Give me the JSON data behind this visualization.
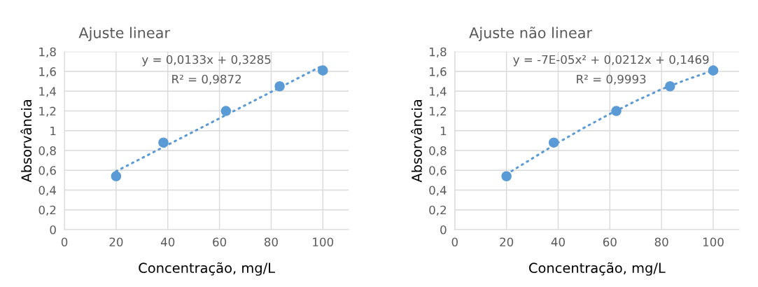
{
  "chart_data": [
    {
      "type": "scatter",
      "title": "Ajuste linear",
      "xlabel": "Concentração, mg/L",
      "ylabel": "Absorvância",
      "xlim": [
        0,
        110
      ],
      "xticks": [
        0,
        20,
        40,
        60,
        80,
        100
      ],
      "ylim": [
        0,
        1.8
      ],
      "yticks": [
        {
          "value": 0,
          "label": "0"
        },
        {
          "value": 0.2,
          "label": "0,2"
        },
        {
          "value": 0.4,
          "label": "0,4"
        },
        {
          "value": 0.6,
          "label": "0,6"
        },
        {
          "value": 0.8,
          "label": "0,8"
        },
        {
          "value": 1,
          "label": "1"
        },
        {
          "value": 1.2,
          "label": "1,2"
        },
        {
          "value": 1.4,
          "label": "1,4"
        },
        {
          "value": 1.6,
          "label": "1,6"
        },
        {
          "value": 1.8,
          "label": "1,8"
        }
      ],
      "grid": true,
      "annotations": [
        "y = 0,0133x + 0,3285",
        "R² = 0,9872"
      ],
      "series": [
        {
          "color": "#5b9bd5",
          "marker": "circle",
          "x": [
            20,
            38.3,
            62.5,
            83.3,
            100
          ],
          "values": [
            0.54,
            0.88,
            1.2,
            1.45,
            1.61
          ]
        },
        {
          "type": "line",
          "color": "#5b9bd5",
          "line_style": "dotted",
          "marker": "none",
          "x": [
            20,
            100
          ],
          "values": [
            0.59,
            1.66
          ]
        }
      ]
    },
    {
      "type": "scatter",
      "title": "Ajuste não linear",
      "xlabel": "Concentração, mg/L",
      "ylabel": "Absorvância",
      "xlim": [
        0,
        110
      ],
      "xticks": [
        0,
        20,
        40,
        60,
        80,
        100
      ],
      "ylim": [
        0,
        1.8
      ],
      "yticks": [
        {
          "value": 0,
          "label": "0"
        },
        {
          "value": 0.2,
          "label": "0,2"
        },
        {
          "value": 0.4,
          "label": "0,4"
        },
        {
          "value": 0.6,
          "label": "0,6"
        },
        {
          "value": 0.8,
          "label": "0,8"
        },
        {
          "value": 1,
          "label": "1"
        },
        {
          "value": 1.2,
          "label": "1,2"
        },
        {
          "value": 1.4,
          "label": "1,4"
        },
        {
          "value": 1.6,
          "label": "1,6"
        },
        {
          "value": 1.8,
          "label": "1,8"
        }
      ],
      "grid": true,
      "annotations": [
        "y = -7E-05x² + 0,0212x + 0,1469",
        "R² = 0,9993"
      ],
      "series": [
        {
          "color": "#5b9bd5",
          "marker": "circle",
          "x": [
            20,
            38.3,
            62.5,
            83.3,
            100
          ],
          "values": [
            0.54,
            0.88,
            1.2,
            1.45,
            1.61
          ]
        },
        {
          "type": "line",
          "color": "#5b9bd5",
          "line_style": "dotted",
          "marker": "none",
          "x": [
            20,
            30,
            40,
            50,
            60,
            70,
            80,
            90,
            100
          ],
          "values": [
            0.56,
            0.72,
            0.88,
            1.03,
            1.17,
            1.3,
            1.42,
            1.52,
            1.61
          ]
        }
      ]
    }
  ]
}
